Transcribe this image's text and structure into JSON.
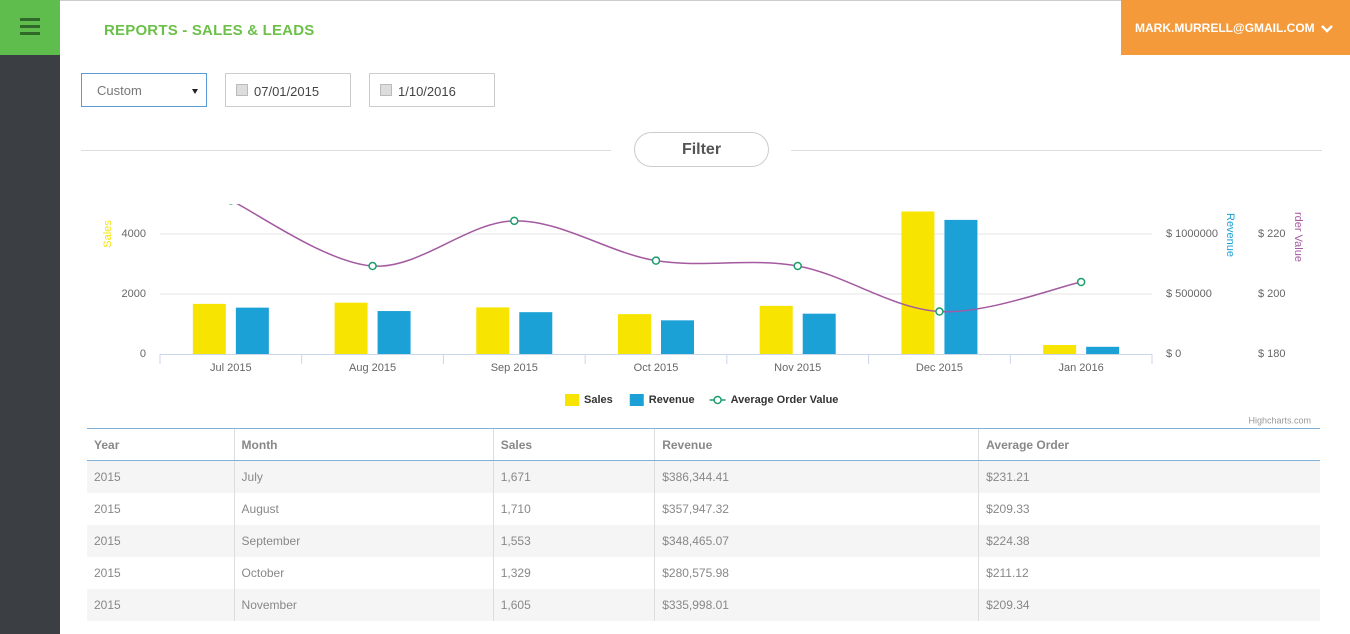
{
  "header": {
    "title": "REPORTS - SALES & LEADS",
    "user": "MARK.MURRELL@GMAIL.COM"
  },
  "filters": {
    "range": "Custom",
    "start": "07/01/2015",
    "end": "1/10/2016",
    "button": "Filter"
  },
  "chart_data": {
    "type": "bar",
    "categories": [
      "Jul 2015",
      "Aug 2015",
      "Sep 2015",
      "Oct 2015",
      "Nov 2015",
      "Dec 2015",
      "Jan 2016"
    ],
    "series": [
      {
        "name": "Sales",
        "type": "bar",
        "axis": "y",
        "color": "#f7e400",
        "values": [
          1671,
          1710,
          1553,
          1329,
          1605,
          4750,
          300
        ]
      },
      {
        "name": "Revenue",
        "type": "bar",
        "axis": "y2",
        "color": "#1ba1d6",
        "values": [
          386344.41,
          357947.32,
          348465.07,
          280575.98,
          335998.01,
          1117524,
          60000
        ]
      },
      {
        "name": "Average Order Value",
        "type": "line",
        "axis": "y3",
        "color": "#a35aa0",
        "marker_color": "#1a9e6a",
        "values": [
          231.21,
          209.33,
          224.38,
          211.12,
          209.34,
          194.15,
          204
        ]
      }
    ],
    "ylabel": "Sales",
    "y2label": "Revenue",
    "y3label": "rder Value",
    "ylim": [
      0,
      5000
    ],
    "yticks": [
      0,
      2000,
      4000
    ],
    "y2lim": [
      0,
      1250000
    ],
    "y2ticks": [
      {
        "value": 0,
        "label": "$ 0"
      },
      {
        "value": 500000,
        "label": "$ 500000"
      },
      {
        "value": 1000000,
        "label": "$ 1000000"
      }
    ],
    "y3lim": [
      180,
      230
    ],
    "y3ticks": [
      {
        "value": 180,
        "label": "$ 180"
      },
      {
        "value": 200,
        "label": "$ 200"
      },
      {
        "value": 220,
        "label": "$ 220"
      }
    ],
    "grid": true,
    "legend": "bottom",
    "credit": "Highcharts.com"
  },
  "table": {
    "columns": [
      "Year",
      "Month",
      "Sales",
      "Revenue",
      "Average Order"
    ],
    "rows": [
      [
        "2015",
        "July",
        "1,671",
        "$386,344.41",
        "$231.21"
      ],
      [
        "2015",
        "August",
        "1,710",
        "$357,947.32",
        "$209.33"
      ],
      [
        "2015",
        "September",
        "1,553",
        "$348,465.07",
        "$224.38"
      ],
      [
        "2015",
        "October",
        "1,329",
        "$280,575.98",
        "$211.12"
      ],
      [
        "2015",
        "November",
        "1,605",
        "$335,998.01",
        "$209.34"
      ]
    ]
  }
}
